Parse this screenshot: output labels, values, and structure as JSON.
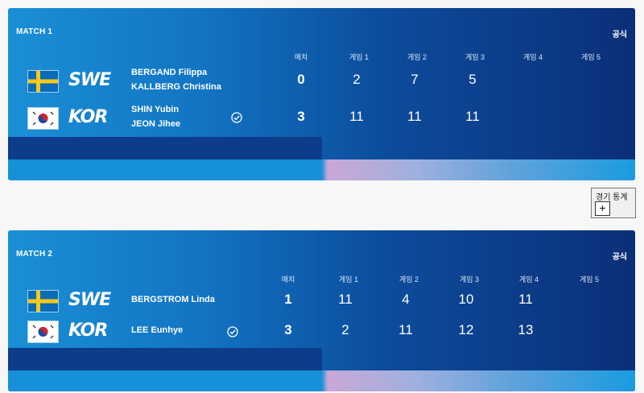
{
  "matches": [
    {
      "label": "MATCH 1",
      "official": "공식",
      "headers": [
        "매치",
        "게임 1",
        "게임 2",
        "게임 3",
        "게임 4",
        "게임 5"
      ],
      "teams": [
        {
          "code": "SWE",
          "flag": "sweden-flag",
          "players": [
            "BERGAND Filippa",
            "KALLBERG Christina"
          ],
          "winner": false,
          "match": "0",
          "games": [
            "2",
            "7",
            "5"
          ]
        },
        {
          "code": "KOR",
          "flag": "korea-flag",
          "players": [
            "SHIN Yubin",
            "JEON Jihee"
          ],
          "winner": true,
          "match": "3",
          "games": [
            "11",
            "11",
            "11"
          ]
        }
      ]
    },
    {
      "label": "MATCH 2",
      "official": "공식",
      "headers": [
        "매치",
        "게임 1",
        "게임 2",
        "게임 3",
        "게임 4",
        "게임 5"
      ],
      "teams": [
        {
          "code": "SWE",
          "flag": "sweden-flag",
          "players": [
            "BERGSTROM Linda"
          ],
          "winner": false,
          "match": "1",
          "games": [
            "11",
            "4",
            "10",
            "11"
          ]
        },
        {
          "code": "KOR",
          "flag": "korea-flag",
          "players": [
            "LEE Eunhye"
          ],
          "winner": true,
          "match": "3",
          "games": [
            "2",
            "11",
            "12",
            "13"
          ]
        }
      ]
    }
  ],
  "stats": {
    "label": "경기 통계",
    "button": "+"
  }
}
